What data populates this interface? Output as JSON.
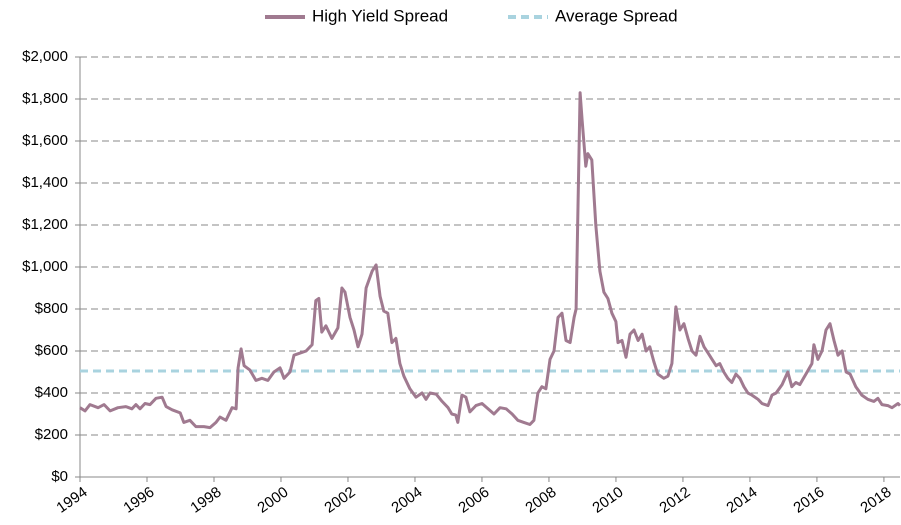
{
  "chart_data": {
    "type": "line",
    "x": [
      1994.0,
      1994.15,
      1994.3,
      1994.54,
      1994.72,
      1994.9,
      1995.13,
      1995.37,
      1995.55,
      1995.67,
      1995.79,
      1995.94,
      1996.09,
      1996.27,
      1996.45,
      1996.57,
      1996.75,
      1996.99,
      1997.1,
      1997.28,
      1997.46,
      1997.7,
      1997.88,
      1998.06,
      1998.18,
      1998.36,
      1998.54,
      1998.66,
      1998.72,
      1998.81,
      1998.9,
      1999.07,
      1999.25,
      1999.43,
      1999.61,
      1999.79,
      1999.97,
      2000.09,
      2000.27,
      2000.39,
      2000.57,
      2000.75,
      2000.93,
      2001.04,
      2001.13,
      2001.22,
      2001.34,
      2001.52,
      2001.7,
      2001.82,
      2001.91,
      2002.06,
      2002.18,
      2002.3,
      2002.42,
      2002.54,
      2002.72,
      2002.84,
      2002.96,
      2003.07,
      2003.19,
      2003.31,
      2003.43,
      2003.55,
      2003.67,
      2003.85,
      2004.03,
      2004.21,
      2004.33,
      2004.45,
      2004.63,
      2004.81,
      2004.99,
      2005.1,
      2005.22,
      2005.28,
      2005.4,
      2005.52,
      2005.64,
      2005.82,
      2006.0,
      2006.18,
      2006.36,
      2006.54,
      2006.72,
      2006.9,
      2007.07,
      2007.25,
      2007.43,
      2007.55,
      2007.67,
      2007.79,
      2007.91,
      2008.03,
      2008.15,
      2008.27,
      2008.39,
      2008.51,
      2008.63,
      2008.75,
      2008.81,
      2008.93,
      2008.99,
      2009.1,
      2009.16,
      2009.28,
      2009.4,
      2009.52,
      2009.64,
      2009.76,
      2009.88,
      2010.0,
      2010.06,
      2010.18,
      2010.3,
      2010.42,
      2010.54,
      2010.66,
      2010.78,
      2010.9,
      2011.01,
      2011.13,
      2011.25,
      2011.43,
      2011.55,
      2011.67,
      2011.79,
      2011.91,
      2012.03,
      2012.15,
      2012.27,
      2012.39,
      2012.51,
      2012.63,
      2012.75,
      2012.87,
      2012.99,
      2013.1,
      2013.22,
      2013.34,
      2013.46,
      2013.58,
      2013.7,
      2013.82,
      2013.94,
      2014.06,
      2014.24,
      2014.36,
      2014.54,
      2014.66,
      2014.78,
      2014.96,
      2015.13,
      2015.25,
      2015.37,
      2015.49,
      2015.67,
      2015.85,
      2015.91,
      2016.03,
      2016.15,
      2016.27,
      2016.39,
      2016.51,
      2016.63,
      2016.75,
      2016.87,
      2016.99,
      2017.16,
      2017.34,
      2017.52,
      2017.7,
      2017.82,
      2017.94,
      2018.12,
      2018.24,
      2018.42,
      2018.48
    ],
    "series": [
      {
        "name": "High Yield Spread",
        "color": "#a07a90",
        "values": [
          330,
          315,
          345,
          330,
          345,
          315,
          330,
          335,
          325,
          345,
          325,
          350,
          345,
          375,
          380,
          335,
          320,
          305,
          260,
          270,
          240,
          240,
          235,
          260,
          285,
          270,
          330,
          325,
          520,
          610,
          530,
          510,
          460,
          470,
          460,
          500,
          520,
          470,
          500,
          580,
          590,
          600,
          630,
          840,
          850,
          690,
          720,
          660,
          710,
          900,
          880,
          760,
          700,
          620,
          680,
          900,
          980,
          1010,
          860,
          790,
          780,
          640,
          660,
          540,
          480,
          420,
          380,
          400,
          370,
          400,
          395,
          360,
          330,
          300,
          295,
          260,
          390,
          380,
          310,
          340,
          350,
          325,
          300,
          330,
          325,
          300,
          270,
          260,
          250,
          270,
          400,
          430,
          420,
          560,
          600,
          760,
          780,
          650,
          640,
          760,
          800,
          1830,
          1700,
          1480,
          1540,
          1510,
          1200,
          980,
          880,
          850,
          780,
          740,
          640,
          650,
          570,
          680,
          700,
          650,
          680,
          600,
          620,
          550,
          490,
          470,
          480,
          540,
          810,
          700,
          730,
          660,
          600,
          580,
          670,
          620,
          590,
          560,
          530,
          540,
          500,
          470,
          450,
          490,
          470,
          430,
          400,
          390,
          370,
          350,
          340,
          390,
          400,
          440,
          500,
          430,
          450,
          440,
          490,
          540,
          630,
          560,
          600,
          700,
          730,
          650,
          580,
          600,
          500,
          490,
          430,
          390,
          370,
          360,
          375,
          345,
          340,
          330,
          350,
          340
        ]
      }
    ],
    "average": {
      "name": "Average Spread",
      "color": "#a9d3df",
      "value": 505
    },
    "xlim": [
      1994,
      2018.48
    ],
    "xticks": [
      1994,
      1996,
      1998,
      2000,
      2002,
      2004,
      2006,
      2008,
      2010,
      2012,
      2014,
      2016,
      2018
    ],
    "ylim": [
      0,
      2000
    ],
    "yticks": [
      {
        "value": 0,
        "label": "$0"
      },
      {
        "value": 200,
        "label": "$200"
      },
      {
        "value": 400,
        "label": "$400"
      },
      {
        "value": 600,
        "label": "$600"
      },
      {
        "value": 800,
        "label": "$800"
      },
      {
        "value": 1000,
        "label": "$1,000"
      },
      {
        "value": 1200,
        "label": "$1,200"
      },
      {
        "value": 1400,
        "label": "$1,400"
      },
      {
        "value": 1600,
        "label": "$1,600"
      },
      {
        "value": 1800,
        "label": "$1,800"
      },
      {
        "value": 2000,
        "label": "$2,000"
      }
    ],
    "grid": true,
    "legend": "top"
  }
}
